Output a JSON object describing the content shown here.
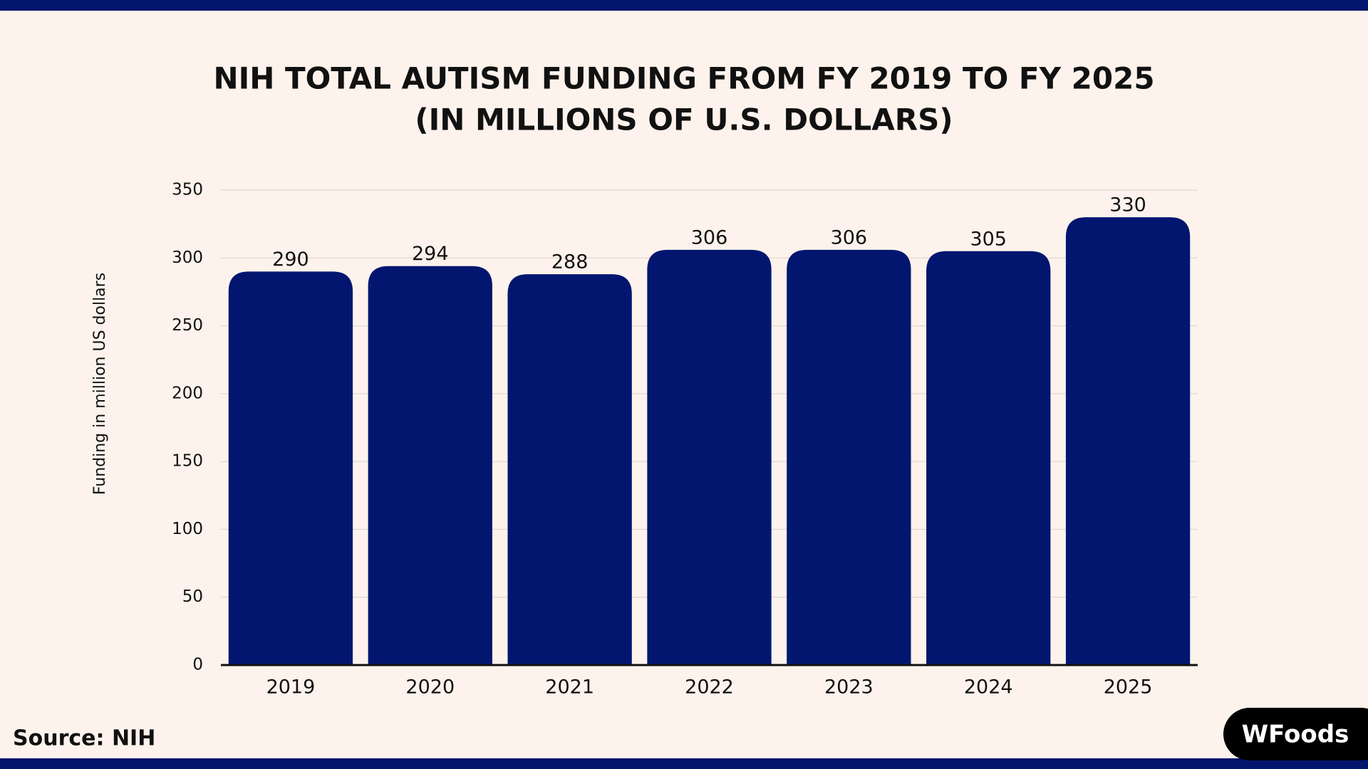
{
  "chart_data": {
    "type": "bar",
    "title": "NIH TOTAL AUTISM FUNDING FROM FY 2019 TO FY 2025",
    "subtitle": "(IN MILLIONS OF U.S. DOLLARS)",
    "y_label": "Funding in million US dollars",
    "categories": [
      "2019",
      "2020",
      "2021",
      "2022",
      "2023",
      "2024",
      "2025"
    ],
    "values": [
      290,
      294,
      288,
      306,
      306,
      305,
      330
    ],
    "color": "#02166f",
    "ylim": [
      0,
      350
    ],
    "yticks": [
      0,
      50,
      100,
      150,
      200,
      250,
      300,
      350
    ],
    "grid": true,
    "source": "Source: NIH",
    "logo": "WFoods"
  }
}
